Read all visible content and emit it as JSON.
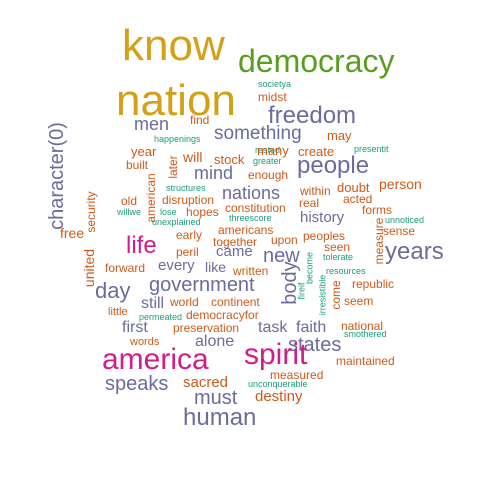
{
  "colors": {
    "large": "#d4a017",
    "green": "#5a9e1f",
    "slate": "#6b6b9e",
    "magenta": "#d11c8a",
    "orange": "#cc5a1a",
    "teal": "#1b9e77"
  },
  "words": {
    "know": "know",
    "democracy": "democracy",
    "nation": "nation",
    "societya": "societya",
    "midst": "midst",
    "freedom": "freedom",
    "find": "find",
    "men": "men",
    "something": "something",
    "may": "may",
    "happenings": "happenings",
    "rested": "rested",
    "presentit": "presentit",
    "year": "year",
    "many": "many",
    "create": "create",
    "will": "will",
    "stock": "stock",
    "greater": "greater",
    "people": "people",
    "built": "built",
    "mind": "mind",
    "enough": "enough",
    "person": "person",
    "structures": "structures",
    "within": "within",
    "doubt": "doubt",
    "old": "old",
    "disruption": "disruption",
    "nations": "nations",
    "acted": "acted",
    "willwe": "willwe",
    "lose": "lose",
    "hopes": "hopes",
    "real": "real",
    "forms": "forms",
    "unexplained": "unexplained",
    "threescore": "threescore",
    "constitution": "constitution",
    "history": "history",
    "unnoticed": "unnoticed",
    "free": "free",
    "early": "early",
    "americans": "americans",
    "sense": "sense",
    "life": "life",
    "together": "together",
    "upon": "upon",
    "peoples": "peoples",
    "years": "years",
    "peril": "peril",
    "came": "came",
    "new": "new",
    "seen": "seen",
    "tolerate": "tolerate",
    "forward": "forward",
    "every": "every",
    "like": "like",
    "written": "written",
    "resources": "resources",
    "government": "government",
    "republic": "republic",
    "day": "day",
    "still": "still",
    "world": "world",
    "continent": "continent",
    "seem": "seem",
    "little": "little",
    "democracyfor": "democracyfor",
    "permeated": "permeated",
    "first": "first",
    "preservation": "preservation",
    "task": "task",
    "faith": "faith",
    "national": "national",
    "smothered": "smothered",
    "words": "words",
    "alone": "alone",
    "states": "states",
    "america": "america",
    "spirit": "spirit",
    "maintained": "maintained",
    "measured": "measured",
    "speaks": "speaks",
    "sacred": "sacred",
    "unconquerable": "unconquerable",
    "must": "must",
    "destiny": "destiny",
    "human": "human",
    "character0": "character(0)",
    "security": "security",
    "united": "united",
    "later": "later",
    "american": "american",
    "body": "body",
    "fireif": "fireif",
    "become": "become",
    "irresistible": "irresistible",
    "come": "come",
    "measure": "measure"
  }
}
